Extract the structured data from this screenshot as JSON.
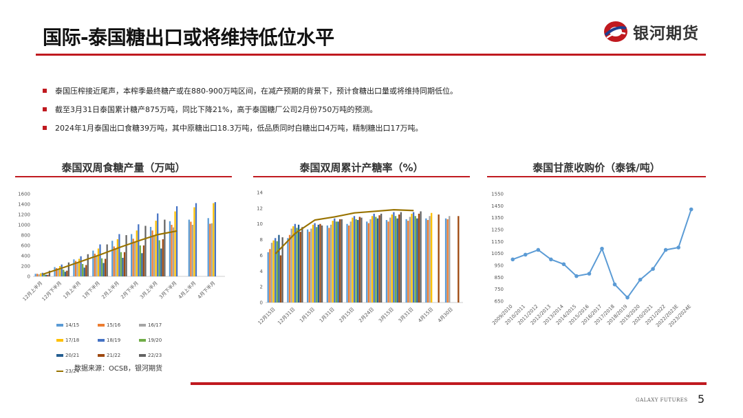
{
  "header": {
    "title": "国际-泰国糖出口或将维持低位水平",
    "logo_text": "银河期货"
  },
  "bullets": [
    "泰国压榨接近尾声，本榨季最终糖产或在880-900万吨区间，在减产预期的背景下，预计食糖出口量或将维持同期低位。",
    "截至3月31日泰国累计糖产875万吨，同比下降21%，高于泰国糖厂公司2月份750万吨的预测。",
    "2024年1月泰国出口食糖39万吨，其中原糖出口18.3万吨，低品质同时白糖出口4万吨，精制糖出口17万吨。"
  ],
  "source": "数据来源：OCSB，银河期货",
  "footer": {
    "brand": "GALAXY FUTURES",
    "page": "5"
  },
  "colors": {
    "accent": "#c0191f",
    "series": [
      "#5b9bd5",
      "#ed7d31",
      "#a5a5a5",
      "#ffc000",
      "#4472c4",
      "#70ad47",
      "#255e91",
      "#9e480e",
      "#636363",
      "#997300"
    ]
  },
  "chart_data": [
    {
      "type": "bar",
      "title": "泰国双周食糖产量（万吨）",
      "categories": [
        "12月上半月",
        "12月下半月",
        "1月上半月",
        "1月下半月",
        "2月上半月",
        "2月下半月",
        "3月上半月",
        "3月下半月",
        "4月上半月",
        "4月下半月"
      ],
      "ylim": [
        0,
        1600
      ],
      "yticks": [
        0,
        200,
        400,
        600,
        800,
        1000,
        1200,
        1400,
        1600
      ],
      "series": [
        {
          "name": "14/15",
          "values": [
            50,
            180,
            330,
            500,
            690,
            820,
            960,
            1070,
            1100,
            1130
          ]
        },
        {
          "name": "15/16",
          "values": [
            50,
            160,
            300,
            440,
            580,
            730,
            890,
            1000,
            1060,
            1020
          ]
        },
        {
          "name": "16/17",
          "values": [
            40,
            140,
            260,
            400,
            540,
            660,
            800,
            950,
            1000,
            1030
          ]
        },
        {
          "name": "17/18",
          "values": [
            60,
            200,
            340,
            540,
            720,
            890,
            1080,
            1260,
            1340,
            1420
          ]
        },
        {
          "name": "18/19",
          "values": [
            70,
            230,
            390,
            620,
            820,
            1010,
            1220,
            1360,
            1420,
            1440
          ]
        },
        {
          "name": "19/20",
          "values": [
            40,
            130,
            240,
            350,
            470,
            600,
            700,
            null,
            null,
            null
          ]
        },
        {
          "name": "20/21",
          "values": [
            30,
            90,
            170,
            260,
            360,
            450,
            540,
            null,
            null,
            null
          ]
        },
        {
          "name": "21/22",
          "values": [
            30,
            110,
            220,
            340,
            470,
            600,
            720,
            null,
            null,
            null
          ]
        },
        {
          "name": "22/23",
          "values": [
            110,
            270,
            430,
            620,
            800,
            980,
            1100,
            null,
            null,
            null
          ]
        },
        {
          "name": "23/24",
          "values": [
            40,
            160,
            290,
            420,
            560,
            690,
            810,
            880,
            null,
            null
          ]
        }
      ]
    },
    {
      "type": "bar",
      "title": "泰国双周累计产糖率（%）",
      "categories": [
        "12月15日",
        "12月31日",
        "1月15日",
        "1月31日",
        "2月15日",
        "2月24日",
        "3月15日",
        "3月31日",
        "4月15日",
        "4月30日"
      ],
      "ylim": [
        0,
        14
      ],
      "yticks": [
        0,
        2,
        4,
        6,
        8,
        10,
        12,
        14
      ],
      "series": [
        {
          "name": "14/15",
          "values": [
            6.4,
            8.2,
            9.3,
            9.8,
            10.0,
            10.3,
            10.5,
            10.6,
            10.7,
            10.7
          ]
        },
        {
          "name": "15/16",
          "values": [
            6.8,
            8.6,
            9.0,
            9.5,
            9.8,
            10.1,
            10.3,
            10.4,
            10.5,
            10.6
          ]
        },
        {
          "name": "16/17",
          "values": [
            7.6,
            9.4,
            9.4,
            9.9,
            10.3,
            10.6,
            10.8,
            10.9,
            11.0,
            11.0
          ]
        },
        {
          "name": "17/18",
          "values": [
            7.9,
            9.7,
            9.9,
            10.4,
            10.8,
            11.0,
            11.2,
            11.3,
            11.4,
            null
          ]
        },
        {
          "name": "18/19",
          "values": [
            8.2,
            10.0,
            10.1,
            10.7,
            11.0,
            11.3,
            11.5,
            11.5,
            null,
            null
          ]
        },
        {
          "name": "19/20",
          "values": [
            7.8,
            9.5,
            9.6,
            10.3,
            10.6,
            10.9,
            11.0,
            11.0,
            null,
            null
          ]
        },
        {
          "name": "20/21",
          "values": [
            8.6,
            9.9,
            9.9,
            10.3,
            10.5,
            10.7,
            10.7,
            10.7,
            null,
            null
          ]
        },
        {
          "name": "21/22",
          "values": [
            6.0,
            9.0,
            10.0,
            10.6,
            10.9,
            11.1,
            11.2,
            11.3,
            11.2,
            11.0
          ]
        },
        {
          "name": "22/23",
          "values": [
            8.3,
            9.6,
            9.8,
            10.6,
            10.8,
            11.3,
            11.5,
            11.6,
            null,
            null
          ]
        },
        {
          "name": "23/24",
          "values": [
            6.2,
            8.8,
            10.5,
            10.9,
            11.4,
            11.6,
            11.8,
            11.7,
            null,
            null
          ]
        }
      ]
    },
    {
      "type": "line",
      "title": "泰国甘蔗收购价（泰铢/吨）",
      "categories": [
        "2009/2010",
        "2010/2011",
        "2011/2012",
        "2012/2013",
        "2013/2014",
        "2014/2015",
        "2015/2016",
        "2016/2017",
        "2017/2018",
        "2018/2019",
        "2019/2020",
        "2020/2021",
        "2021/2022",
        "2022/2023E",
        "2023/2024E"
      ],
      "ylim": [
        650,
        1550
      ],
      "yticks": [
        650,
        750,
        850,
        950,
        1050,
        1150,
        1250,
        1350,
        1450,
        1550
      ],
      "series": [
        {
          "values": [
            1000,
            1040,
            1080,
            1000,
            960,
            860,
            880,
            1090,
            790,
            680,
            830,
            920,
            1080,
            1100,
            1420
          ]
        }
      ]
    }
  ]
}
